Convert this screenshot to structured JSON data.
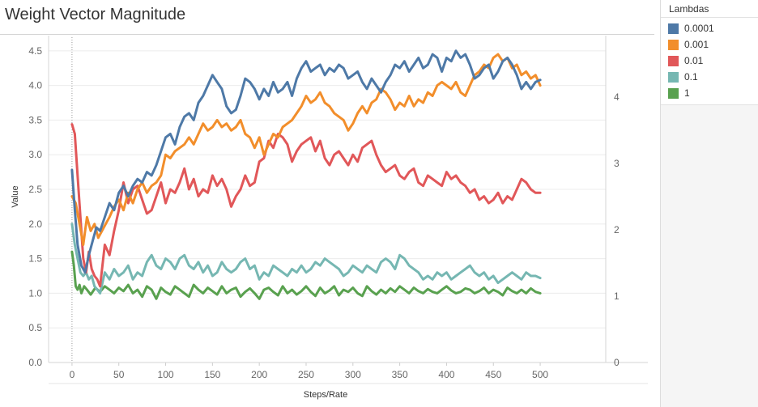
{
  "chart_data": {
    "type": "line",
    "title": "Weight Vector Magnitude",
    "xlabel": "Steps/Rate",
    "ylabel": "Value",
    "xlim": [
      -25,
      570
    ],
    "ylim": [
      0,
      4.65
    ],
    "y2lim": [
      0,
      4.85
    ],
    "x_ticks": [
      0,
      50,
      100,
      150,
      200,
      250,
      300,
      350,
      400,
      450,
      500
    ],
    "y_ticks": [
      0.0,
      0.5,
      1.0,
      1.5,
      2.0,
      2.5,
      3.0,
      3.5,
      4.0,
      4.5
    ],
    "y2_ticks": [
      0,
      1,
      2,
      3,
      4
    ],
    "legend_title": "Lambdas",
    "legend_position": "right",
    "grid": true,
    "series": [
      {
        "name": "0.0001",
        "color": "#4e79a7",
        "x": [
          0,
          3,
          6,
          10,
          14,
          18,
          22,
          26,
          30,
          35,
          40,
          45,
          50,
          55,
          60,
          65,
          70,
          75,
          80,
          85,
          90,
          95,
          100,
          105,
          110,
          115,
          120,
          125,
          130,
          135,
          140,
          145,
          150,
          155,
          160,
          165,
          170,
          175,
          180,
          185,
          190,
          195,
          200,
          205,
          210,
          215,
          220,
          225,
          230,
          235,
          240,
          245,
          250,
          255,
          260,
          265,
          270,
          275,
          280,
          285,
          290,
          295,
          300,
          305,
          310,
          315,
          320,
          325,
          330,
          335,
          340,
          345,
          350,
          355,
          360,
          365,
          370,
          375,
          380,
          385,
          390,
          395,
          400,
          405,
          410,
          415,
          420,
          425,
          430,
          435,
          440,
          445,
          450,
          455,
          460,
          465,
          470,
          475,
          480,
          485,
          490,
          495,
          500
        ],
        "values": [
          2.78,
          2.2,
          1.7,
          1.4,
          1.3,
          1.55,
          1.75,
          1.95,
          1.9,
          2.1,
          2.3,
          2.2,
          2.45,
          2.55,
          2.4,
          2.55,
          2.65,
          2.6,
          2.75,
          2.7,
          2.85,
          3.05,
          3.25,
          3.3,
          3.15,
          3.4,
          3.55,
          3.6,
          3.5,
          3.75,
          3.85,
          4.0,
          4.15,
          4.05,
          3.95,
          3.7,
          3.6,
          3.65,
          3.85,
          4.1,
          4.05,
          3.95,
          3.8,
          3.95,
          3.85,
          4.05,
          3.9,
          3.95,
          4.05,
          3.85,
          4.1,
          4.25,
          4.35,
          4.2,
          4.25,
          4.3,
          4.15,
          4.25,
          4.2,
          4.3,
          4.25,
          4.1,
          4.15,
          4.2,
          4.05,
          3.95,
          4.1,
          4.0,
          3.9,
          4.05,
          4.15,
          4.3,
          4.25,
          4.35,
          4.2,
          4.3,
          4.4,
          4.25,
          4.3,
          4.45,
          4.4,
          4.2,
          4.4,
          4.35,
          4.5,
          4.4,
          4.45,
          4.3,
          4.1,
          4.15,
          4.25,
          4.3,
          4.1,
          4.2,
          4.35,
          4.4,
          4.3,
          4.15,
          3.95,
          4.05,
          3.95,
          4.05,
          4.08
        ]
      },
      {
        "name": "0.001",
        "color": "#f28e2b",
        "x": [
          0,
          4,
          8,
          12,
          16,
          20,
          24,
          28,
          32,
          36,
          40,
          45,
          50,
          55,
          60,
          65,
          70,
          75,
          80,
          85,
          90,
          95,
          100,
          105,
          110,
          115,
          120,
          125,
          130,
          135,
          140,
          145,
          150,
          155,
          160,
          165,
          170,
          175,
          180,
          185,
          190,
          195,
          200,
          205,
          210,
          215,
          220,
          225,
          230,
          235,
          240,
          245,
          250,
          255,
          260,
          265,
          270,
          275,
          280,
          285,
          290,
          295,
          300,
          305,
          310,
          315,
          320,
          325,
          330,
          335,
          340,
          345,
          350,
          355,
          360,
          365,
          370,
          375,
          380,
          385,
          390,
          395,
          400,
          405,
          410,
          415,
          420,
          425,
          430,
          435,
          440,
          445,
          450,
          455,
          460,
          465,
          470,
          475,
          480,
          485,
          490,
          495,
          500
        ],
        "values": [
          2.4,
          2.3,
          2.0,
          1.7,
          2.1,
          1.9,
          2.0,
          1.8,
          1.9,
          2.0,
          2.1,
          2.25,
          2.35,
          2.2,
          2.45,
          2.3,
          2.5,
          2.6,
          2.45,
          2.55,
          2.6,
          2.7,
          3.0,
          2.95,
          3.05,
          3.1,
          3.15,
          3.25,
          3.15,
          3.3,
          3.45,
          3.35,
          3.4,
          3.5,
          3.4,
          3.45,
          3.35,
          3.4,
          3.5,
          3.3,
          3.25,
          3.1,
          3.25,
          3.0,
          3.15,
          3.3,
          3.25,
          3.4,
          3.45,
          3.5,
          3.6,
          3.7,
          3.85,
          3.75,
          3.8,
          3.9,
          3.75,
          3.7,
          3.6,
          3.55,
          3.5,
          3.35,
          3.45,
          3.6,
          3.7,
          3.6,
          3.75,
          3.8,
          3.95,
          3.9,
          3.8,
          3.65,
          3.75,
          3.7,
          3.85,
          3.7,
          3.8,
          3.75,
          3.9,
          3.85,
          4.0,
          4.05,
          4.0,
          3.95,
          4.05,
          3.9,
          3.85,
          4.0,
          4.15,
          4.2,
          4.3,
          4.25,
          4.4,
          4.45,
          4.35,
          4.4,
          4.25,
          4.3,
          4.15,
          4.2,
          4.1,
          4.15,
          4.0
        ]
      },
      {
        "name": "0.01",
        "color": "#e15759",
        "x": [
          0,
          3,
          6,
          9,
          12,
          15,
          18,
          21,
          24,
          27,
          30,
          35,
          40,
          45,
          50,
          55,
          60,
          65,
          70,
          75,
          80,
          85,
          90,
          95,
          100,
          105,
          110,
          115,
          120,
          125,
          130,
          135,
          140,
          145,
          150,
          155,
          160,
          165,
          170,
          175,
          180,
          185,
          190,
          195,
          200,
          205,
          210,
          215,
          220,
          225,
          230,
          235,
          240,
          245,
          250,
          255,
          260,
          265,
          270,
          275,
          280,
          285,
          290,
          295,
          300,
          305,
          310,
          315,
          320,
          325,
          330,
          335,
          340,
          345,
          350,
          355,
          360,
          365,
          370,
          375,
          380,
          385,
          390,
          395,
          400,
          405,
          410,
          415,
          420,
          425,
          430,
          435,
          440,
          445,
          450,
          455,
          460,
          465,
          470,
          475,
          480,
          485,
          490,
          495,
          500
        ],
        "values": [
          3.44,
          3.3,
          2.7,
          2.1,
          1.5,
          1.3,
          1.6,
          1.35,
          1.25,
          1.2,
          1.1,
          1.7,
          1.55,
          1.9,
          2.2,
          2.6,
          2.3,
          2.5,
          2.55,
          2.35,
          2.15,
          2.2,
          2.4,
          2.6,
          2.3,
          2.5,
          2.45,
          2.6,
          2.8,
          2.5,
          2.65,
          2.4,
          2.5,
          2.45,
          2.7,
          2.55,
          2.65,
          2.5,
          2.25,
          2.4,
          2.5,
          2.7,
          2.55,
          2.6,
          2.9,
          2.95,
          3.2,
          3.1,
          3.3,
          3.25,
          3.15,
          2.9,
          3.05,
          3.15,
          3.2,
          3.25,
          3.05,
          3.2,
          2.95,
          2.85,
          3.0,
          3.05,
          2.95,
          2.85,
          3.0,
          2.9,
          3.1,
          3.15,
          3.2,
          3.0,
          2.85,
          2.75,
          2.8,
          2.85,
          2.7,
          2.65,
          2.75,
          2.8,
          2.6,
          2.55,
          2.7,
          2.65,
          2.6,
          2.55,
          2.75,
          2.65,
          2.7,
          2.6,
          2.55,
          2.45,
          2.5,
          2.35,
          2.4,
          2.3,
          2.35,
          2.45,
          2.3,
          2.4,
          2.35,
          2.5,
          2.65,
          2.6,
          2.5,
          2.45,
          2.45
        ]
      },
      {
        "name": "0.1",
        "color": "#76b7b2",
        "x": [
          0,
          3,
          6,
          9,
          12,
          15,
          18,
          21,
          24,
          27,
          30,
          35,
          40,
          45,
          50,
          55,
          60,
          65,
          70,
          75,
          80,
          85,
          90,
          95,
          100,
          105,
          110,
          115,
          120,
          125,
          130,
          135,
          140,
          145,
          150,
          155,
          160,
          165,
          170,
          175,
          180,
          185,
          190,
          195,
          200,
          205,
          210,
          215,
          220,
          225,
          230,
          235,
          240,
          245,
          250,
          255,
          260,
          265,
          270,
          275,
          280,
          285,
          290,
          295,
          300,
          305,
          310,
          315,
          320,
          325,
          330,
          335,
          340,
          345,
          350,
          355,
          360,
          365,
          370,
          375,
          380,
          385,
          390,
          395,
          400,
          405,
          410,
          415,
          420,
          425,
          430,
          435,
          440,
          445,
          450,
          455,
          460,
          465,
          470,
          475,
          480,
          485,
          490,
          495,
          500
        ],
        "values": [
          2.0,
          1.7,
          1.5,
          1.3,
          1.25,
          1.3,
          1.2,
          1.25,
          1.1,
          1.05,
          1.0,
          1.3,
          1.2,
          1.35,
          1.25,
          1.3,
          1.4,
          1.2,
          1.3,
          1.25,
          1.45,
          1.55,
          1.4,
          1.35,
          1.5,
          1.45,
          1.35,
          1.5,
          1.55,
          1.4,
          1.35,
          1.45,
          1.3,
          1.4,
          1.25,
          1.3,
          1.45,
          1.35,
          1.3,
          1.35,
          1.45,
          1.5,
          1.35,
          1.4,
          1.2,
          1.3,
          1.25,
          1.4,
          1.35,
          1.3,
          1.25,
          1.35,
          1.3,
          1.4,
          1.3,
          1.35,
          1.45,
          1.4,
          1.5,
          1.45,
          1.4,
          1.35,
          1.25,
          1.3,
          1.4,
          1.35,
          1.3,
          1.4,
          1.35,
          1.3,
          1.45,
          1.5,
          1.45,
          1.35,
          1.55,
          1.5,
          1.4,
          1.35,
          1.3,
          1.2,
          1.25,
          1.2,
          1.3,
          1.25,
          1.3,
          1.2,
          1.25,
          1.3,
          1.35,
          1.4,
          1.3,
          1.25,
          1.3,
          1.2,
          1.25,
          1.15,
          1.2,
          1.25,
          1.3,
          1.25,
          1.2,
          1.3,
          1.25,
          1.25,
          1.22
        ]
      },
      {
        "name": "1",
        "color": "#59a14f",
        "x": [
          0,
          2,
          4,
          6,
          8,
          10,
          13,
          16,
          20,
          25,
          30,
          35,
          40,
          45,
          50,
          55,
          60,
          65,
          70,
          75,
          80,
          85,
          90,
          95,
          100,
          105,
          110,
          115,
          120,
          125,
          130,
          135,
          140,
          145,
          150,
          155,
          160,
          165,
          170,
          175,
          180,
          185,
          190,
          195,
          200,
          205,
          210,
          215,
          220,
          225,
          230,
          235,
          240,
          245,
          250,
          255,
          260,
          265,
          270,
          275,
          280,
          285,
          290,
          295,
          300,
          305,
          310,
          315,
          320,
          325,
          330,
          335,
          340,
          345,
          350,
          355,
          360,
          365,
          370,
          375,
          380,
          385,
          390,
          395,
          400,
          405,
          410,
          415,
          420,
          425,
          430,
          435,
          440,
          445,
          450,
          455,
          460,
          465,
          470,
          475,
          480,
          485,
          490,
          495,
          500
        ],
        "values": [
          1.6,
          1.4,
          1.1,
          1.05,
          1.12,
          1.0,
          1.1,
          1.05,
          0.98,
          1.08,
          1.02,
          1.1,
          1.05,
          1.0,
          1.08,
          1.03,
          1.12,
          1.0,
          1.05,
          0.95,
          1.1,
          1.05,
          0.92,
          1.08,
          1.02,
          0.98,
          1.1,
          1.05,
          1.0,
          0.95,
          1.12,
          1.05,
          1.0,
          1.08,
          1.03,
          0.98,
          1.1,
          1.0,
          1.05,
          1.08,
          0.95,
          1.02,
          1.07,
          1.0,
          0.92,
          1.05,
          1.08,
          1.02,
          0.97,
          1.1,
          1.0,
          1.05,
          0.98,
          1.03,
          1.1,
          1.02,
          0.96,
          1.08,
          1.0,
          1.04,
          1.1,
          0.97,
          1.05,
          1.02,
          1.08,
          1.0,
          0.96,
          1.1,
          1.03,
          0.98,
          1.05,
          1.0,
          1.07,
          1.02,
          1.1,
          1.05,
          1.0,
          1.08,
          1.03,
          1.0,
          1.06,
          1.02,
          1.0,
          1.05,
          1.1,
          1.04,
          1.0,
          1.02,
          1.07,
          1.05,
          1.0,
          1.03,
          1.08,
          1.0,
          1.05,
          1.02,
          0.97,
          1.08,
          1.03,
          1.0,
          1.05,
          1.0,
          1.07,
          1.02,
          1.0
        ]
      }
    ]
  }
}
